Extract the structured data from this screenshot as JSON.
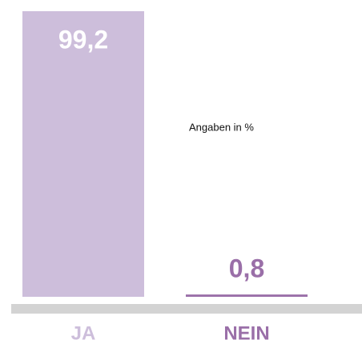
{
  "chart_data": {
    "type": "bar",
    "categories": [
      "JA",
      "NEIN"
    ],
    "values": [
      99.2,
      0.8
    ],
    "value_labels": [
      "99,2",
      "0,8"
    ],
    "colors": [
      "#cdbedb",
      "#9a6fa8"
    ],
    "annotation": "Angaben in %"
  }
}
